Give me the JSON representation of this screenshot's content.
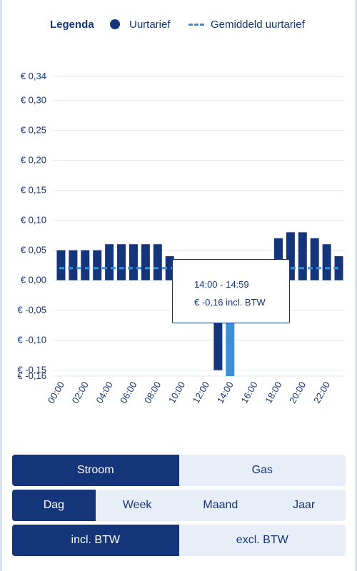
{
  "legend": {
    "title": "Legenda",
    "item1": "Uurtarief",
    "item2": "Gemiddeld uurtarief"
  },
  "colors": {
    "bar": "#14357a",
    "bar_highlight": "#3a8fd6",
    "average_line": "#3a8fd6"
  },
  "chart_data": {
    "type": "bar",
    "categories": [
      "00:00",
      "01:00",
      "02:00",
      "03:00",
      "04:00",
      "05:00",
      "06:00",
      "07:00",
      "08:00",
      "09:00",
      "10:00",
      "11:00",
      "12:00",
      "13:00",
      "14:00",
      "15:00",
      "16:00",
      "17:00",
      "18:00",
      "19:00",
      "20:00",
      "21:00",
      "22:00",
      "23:00"
    ],
    "x_tick_labels": [
      "00:00",
      "02:00",
      "04:00",
      "06:00",
      "08:00",
      "10:00",
      "12:00",
      "14:00",
      "16:00",
      "18:00",
      "20:00",
      "22:00"
    ],
    "values": [
      0.05,
      0.05,
      0.05,
      0.05,
      0.06,
      0.06,
      0.06,
      0.06,
      0.06,
      0.04,
      0.03,
      0.02,
      0.01,
      -0.15,
      -0.16,
      -0.01,
      0.01,
      0.03,
      0.07,
      0.08,
      0.08,
      0.07,
      0.06,
      0.04
    ],
    "highlight_index": 14,
    "average": 0.02,
    "ylim": [
      -0.16,
      0.34
    ],
    "y_tick_values": [
      0.34,
      0.3,
      0.25,
      0.2,
      0.15,
      0.1,
      0.05,
      0.0,
      -0.05,
      -0.1,
      -0.15,
      -0.16
    ],
    "y_tick_labels": [
      "€ 0,34",
      "€ 0,30",
      "€ 0,25",
      "€ 0,20",
      "€ 0,15",
      "€ 0,10",
      "€ 0,05",
      "€ 0,00",
      "€ -0,05",
      "€ -0,10",
      "€ -0,15",
      "€ -0,16"
    ],
    "grid": true,
    "title": "",
    "xlabel": "",
    "ylabel": ""
  },
  "tooltip": {
    "time": "14:00 - 14:59",
    "value": "€ -0,16 incl. BTW"
  },
  "toggles": {
    "energy": [
      "Stroom",
      "Gas"
    ],
    "period": [
      "Dag",
      "Week",
      "Maand",
      "Jaar"
    ],
    "tax": [
      "incl. BTW",
      "excl. BTW"
    ]
  }
}
